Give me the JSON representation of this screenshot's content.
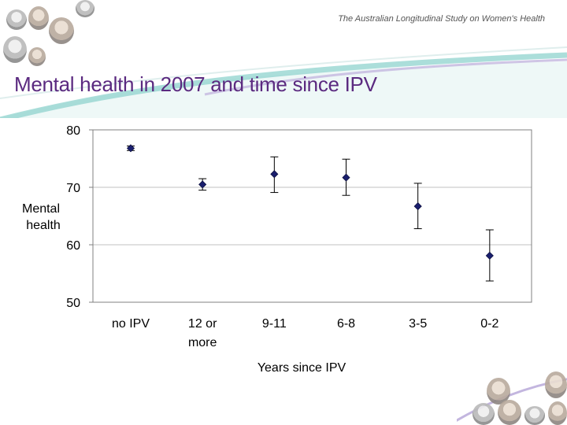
{
  "header": {
    "subtitle": "The Australian Longitudinal Study on Women's Health"
  },
  "slide": {
    "title": "Mental health in 2007 and time since IPV"
  },
  "colors": {
    "title": "#5b2a80",
    "marker": "#1a1f6e",
    "swoosh_teal": "#8fd3cd",
    "swoosh_purple": "#c3b6df"
  },
  "chart_data": {
    "type": "scatter",
    "title": "",
    "xlabel": "Years since IPV",
    "ylabel": "Mental health",
    "ylim": [
      50,
      80
    ],
    "yticks": [
      50,
      60,
      70,
      80
    ],
    "grid": true,
    "categories": [
      "no IPV",
      "12 or more",
      "9-11",
      "6-8",
      "3-5",
      "0-2"
    ],
    "series": [
      {
        "name": "Mental health",
        "values": [
          76.8,
          70.5,
          72.3,
          71.7,
          66.7,
          58.1
        ],
        "error_low": [
          76.4,
          69.5,
          69.1,
          68.6,
          62.8,
          53.7
        ],
        "error_high": [
          77.2,
          71.5,
          75.3,
          74.9,
          70.7,
          62.6
        ]
      }
    ]
  }
}
